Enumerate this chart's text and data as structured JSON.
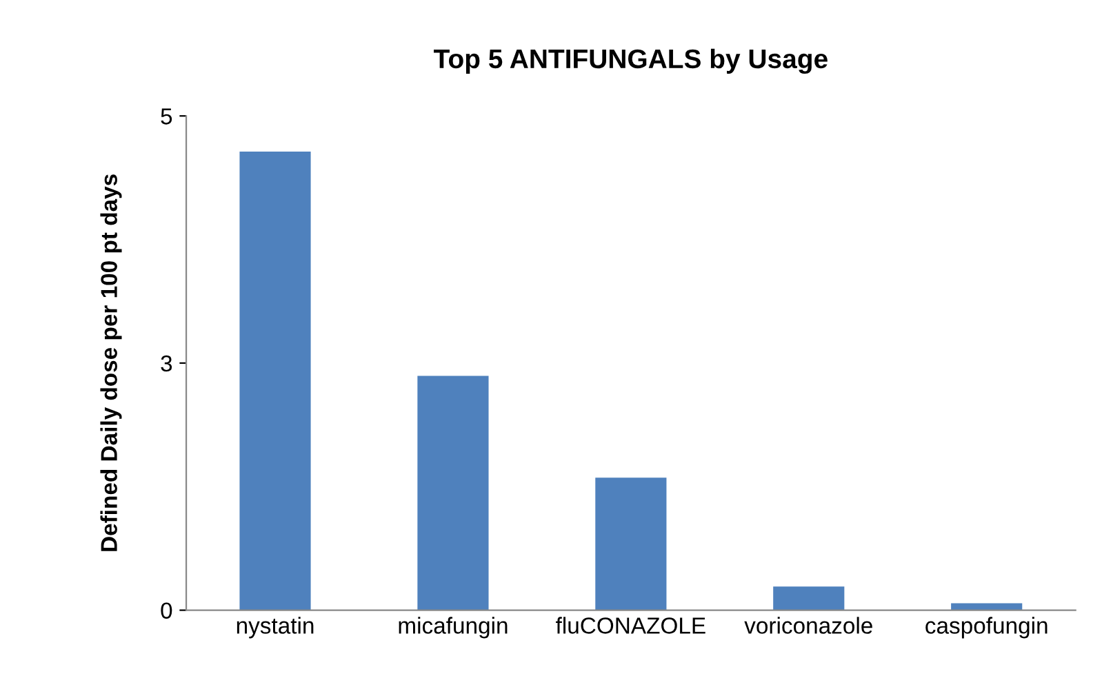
{
  "chart_data": {
    "type": "bar",
    "title": "Top 5 ANTIFUNGALS by Usage",
    "ylabel": "Defined Daily dose per 100 pt days",
    "categories": [
      "nystatin",
      "micafungin",
      "fluCONAZOLE",
      "voriconazole",
      "caspofungin"
    ],
    "values": [
      4.64,
      2.37,
      1.34,
      0.24,
      0.07
    ],
    "color": "#4f81bd",
    "ylim": [
      0,
      5
    ],
    "yticks": [
      0,
      {
        "value": 2.5,
        "label": "3"
      },
      5
    ],
    "grid": false,
    "legend": false
  }
}
